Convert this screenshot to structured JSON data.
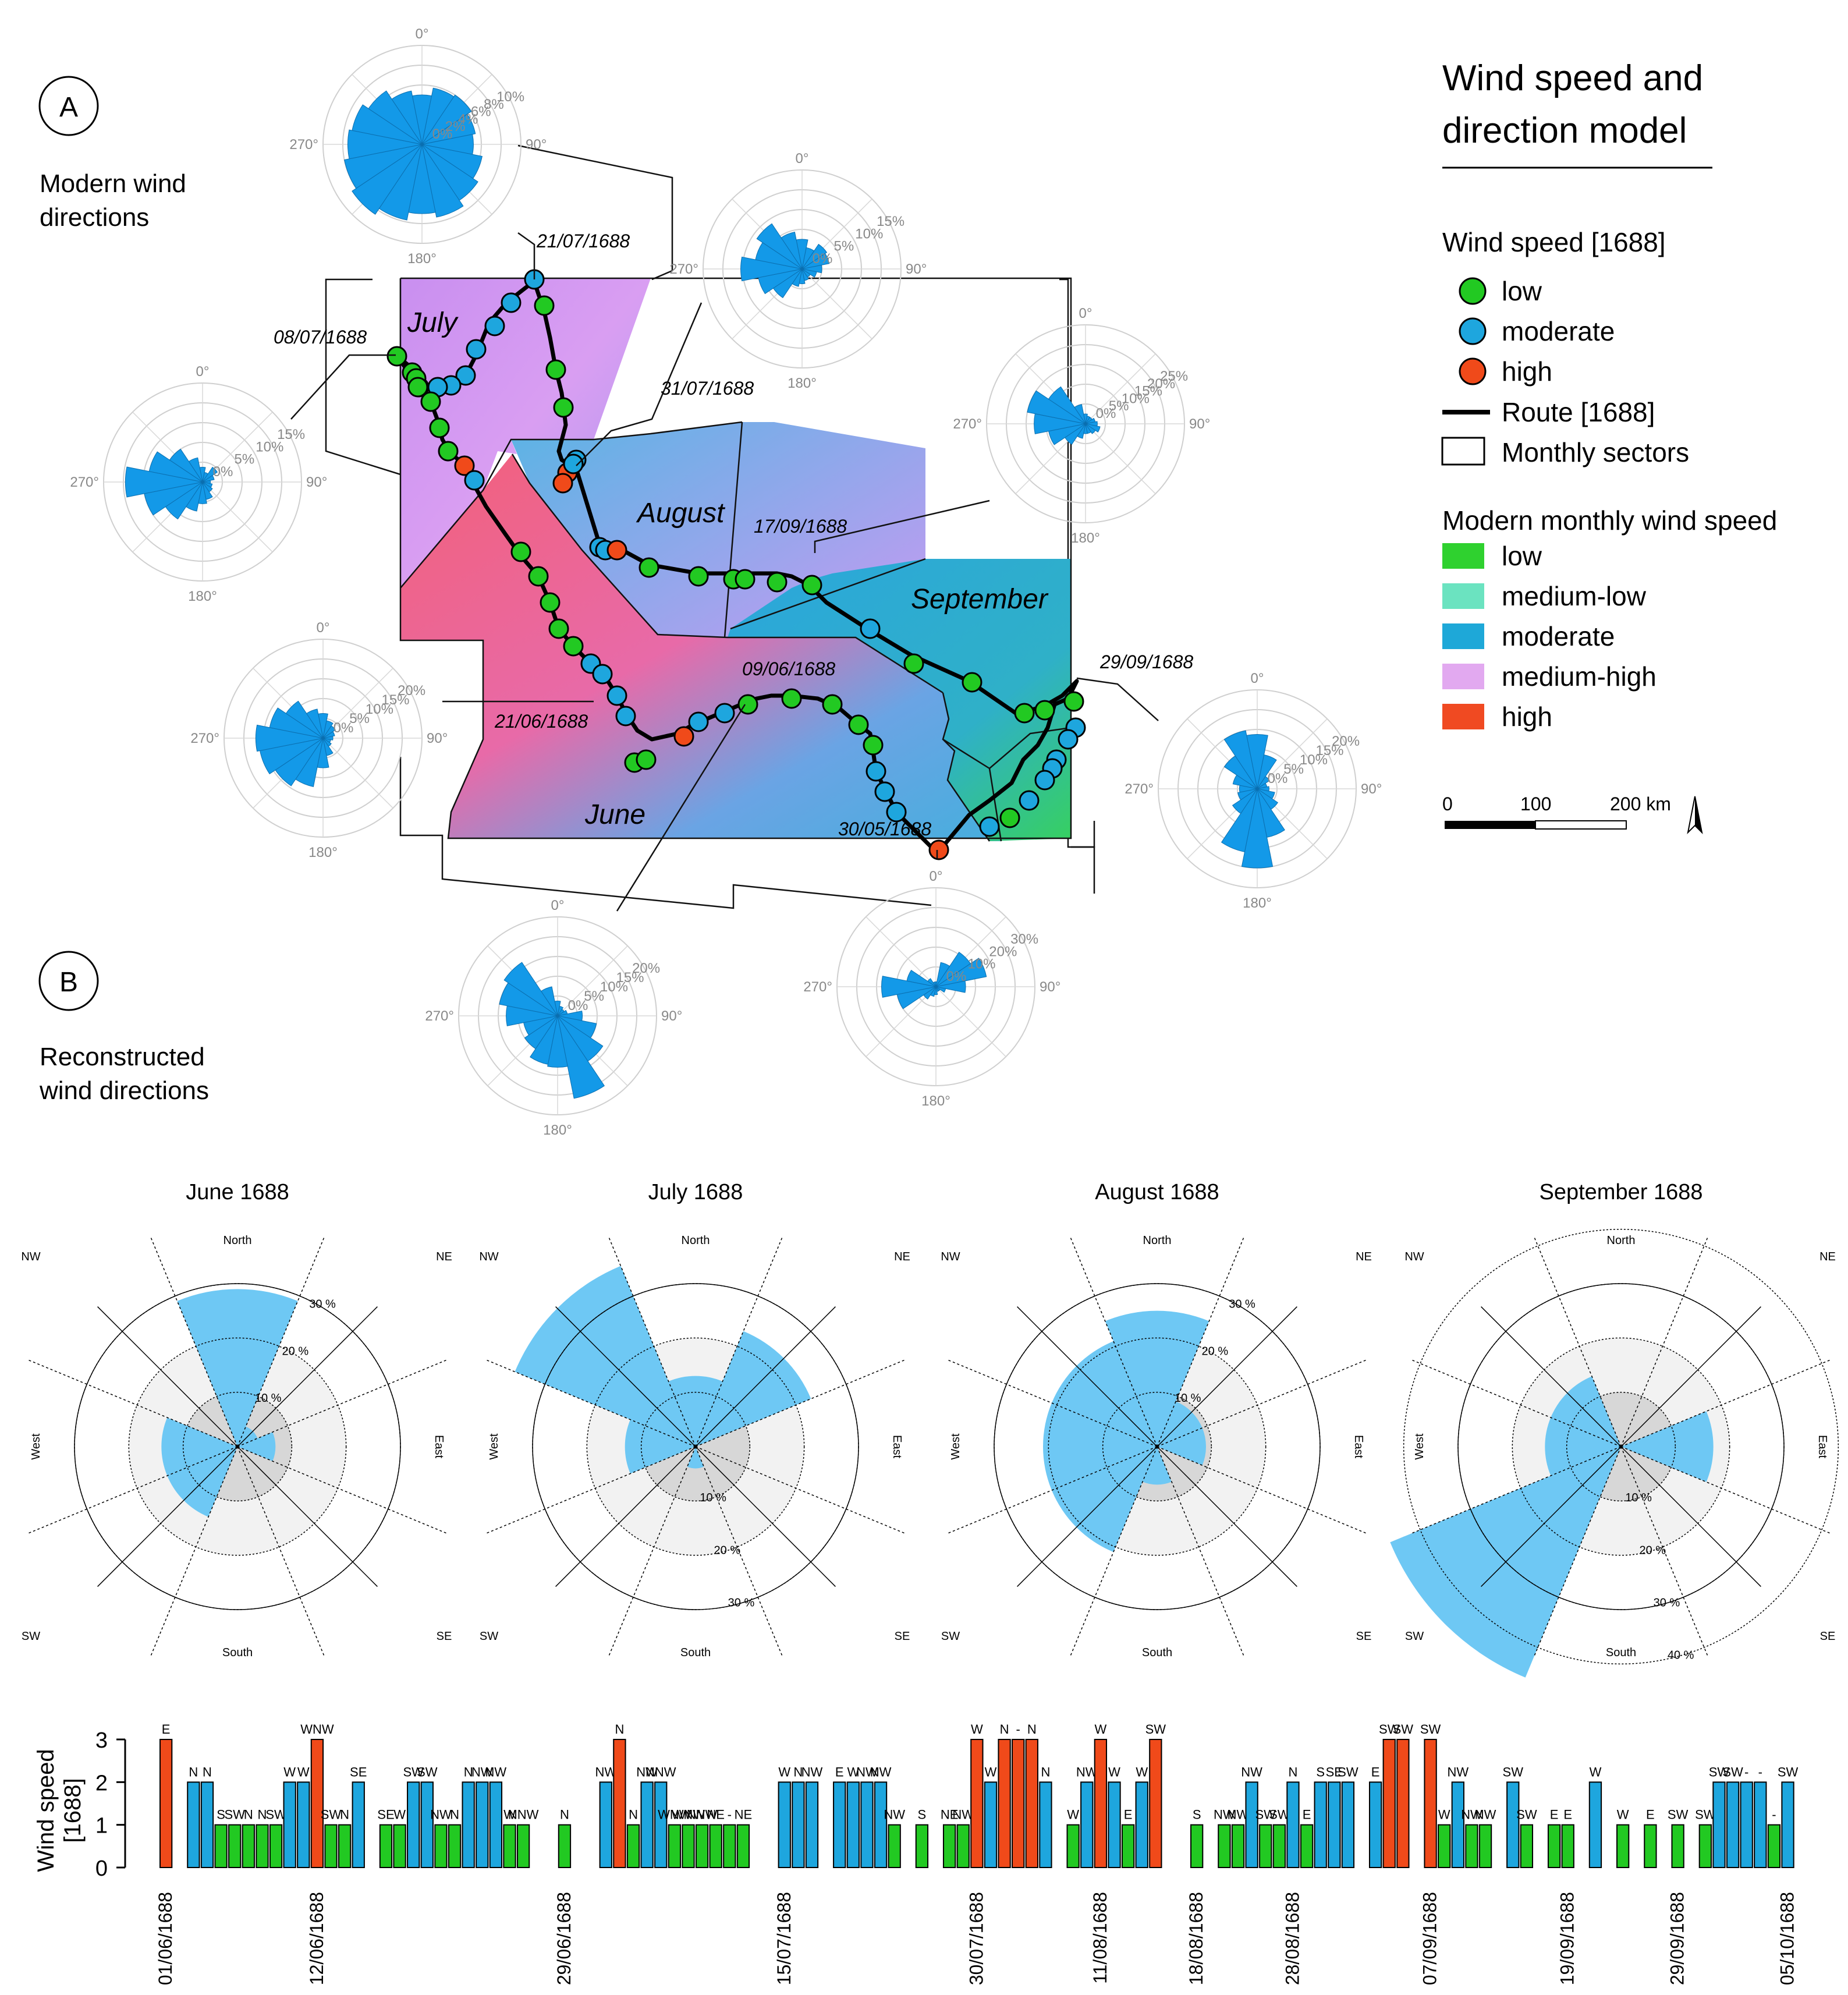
{
  "panels": {
    "a_label": "A",
    "a_caption": [
      "Modern wind",
      "directions"
    ],
    "b_label": "B",
    "b_caption": [
      "Reconstructed",
      "wind directions"
    ]
  },
  "legend": {
    "title": [
      "Wind speed and",
      "direction model"
    ],
    "wind_speed_title": "Wind speed [1688]",
    "wind_speed_items": [
      {
        "label": "low",
        "color": "#22c922"
      },
      {
        "label": "moderate",
        "color": "#1ea6de"
      },
      {
        "label": "high",
        "color": "#f04a1a"
      }
    ],
    "route_label": "Route [1688]",
    "sectors_label": "Monthly sectors",
    "modern_title": "Modern monthly wind speed",
    "modern_items": [
      {
        "label": "low",
        "color": "#2fd12f"
      },
      {
        "label": "medium-low",
        "color": "#6be3c0"
      },
      {
        "label": "moderate",
        "color": "#1ea8d8"
      },
      {
        "label": "medium-high",
        "color": "#e2a9f0"
      },
      {
        "label": "high",
        "color": "#f04a22"
      }
    ],
    "scale": {
      "ticks": [
        "0",
        "100",
        "200 km"
      ]
    }
  },
  "map": {
    "month_labels": [
      "July",
      "August",
      "September",
      "June"
    ],
    "date_labels": [
      "21/07/1688",
      "08/07/1688",
      "31/07/1688",
      "17/09/1688",
      "09/06/1688",
      "21/06/1688",
      "29/09/1688",
      "30/05/1688"
    ],
    "colors": {
      "low": "#22c922",
      "moderate": "#1ea6de",
      "high": "#f04a1a",
      "rose": "#1399e8"
    }
  },
  "modern_roses": [
    {
      "id": "jul-top",
      "ticks": [
        "0%",
        "2%",
        "4%",
        "6%",
        "8%",
        "10%"
      ],
      "cardinals": [
        "0°",
        "90°",
        "180°",
        "270°"
      ]
    },
    {
      "id": "aug-top",
      "ticks": [
        "0%",
        "5%",
        "10%",
        "15%"
      ],
      "cardinals": [
        "0°",
        "90°",
        "180°",
        "270°"
      ]
    },
    {
      "id": "jul-left",
      "ticks": [
        "0%",
        "5%",
        "10%",
        "15%"
      ],
      "cardinals": [
        "0°",
        "90°",
        "180°",
        "270°"
      ]
    },
    {
      "id": "sep-right",
      "ticks": [
        "0%",
        "5%",
        "10%",
        "15%",
        "20%",
        "25%"
      ],
      "cardinals": [
        "0°",
        "90°",
        "180°",
        "270°"
      ]
    },
    {
      "id": "jun-left",
      "ticks": [
        "0%",
        "5%",
        "10%",
        "15%",
        "20%"
      ],
      "cardinals": [
        "0°",
        "90°",
        "180°",
        "270°"
      ]
    },
    {
      "id": "sep-far-right",
      "ticks": [
        "0%",
        "5%",
        "10%",
        "15%",
        "20%"
      ],
      "cardinals": [
        "0°",
        "90°",
        "180°",
        "270°"
      ]
    },
    {
      "id": "jun-bottom",
      "ticks": [
        "0%",
        "5%",
        "10%",
        "15%",
        "20%"
      ],
      "cardinals": [
        "0°",
        "90°",
        "180°",
        "270°"
      ]
    },
    {
      "id": "may-bottom",
      "ticks": [
        "0%",
        "10%",
        "20%",
        "30%"
      ],
      "cardinals": [
        "0°",
        "90°",
        "180°",
        "270°"
      ]
    }
  ],
  "chart_data": [
    {
      "type": "rose",
      "title": "June 1688",
      "directions": [
        "N",
        "NE",
        "E",
        "SE",
        "S",
        "SW",
        "W",
        "NW"
      ],
      "direction_labels": [
        "North",
        "NE",
        "East",
        "SE",
        "South",
        "SW",
        "West",
        "NW"
      ],
      "values": [
        29,
        4,
        7,
        0,
        0,
        14,
        14,
        0
      ],
      "ring_labels": [
        "10 %",
        "20 %",
        "30 %"
      ],
      "rmax": 40
    },
    {
      "type": "rose",
      "title": "July 1688",
      "directions": [
        "N",
        "NE",
        "E",
        "SE",
        "S",
        "SW",
        "W",
        "NW"
      ],
      "direction_labels": [
        "North",
        "NE",
        "East",
        "SE",
        "South",
        "SW",
        "West",
        "NW"
      ],
      "values": [
        13,
        23,
        0,
        0,
        4,
        0,
        13,
        36
      ],
      "ring_labels": [
        "10 %",
        "20 %",
        "30 %"
      ],
      "rmax": 40
    },
    {
      "type": "rose",
      "title": "August 1688",
      "directions": [
        "N",
        "NE",
        "E",
        "SE",
        "S",
        "SW",
        "W",
        "NW"
      ],
      "direction_labels": [
        "North",
        "NE",
        "East",
        "SE",
        "South",
        "SW",
        "West",
        "NW"
      ],
      "values": [
        25,
        9,
        9,
        0,
        7,
        21,
        21,
        21
      ],
      "ring_labels": [
        "10 %",
        "20 %",
        "30 %"
      ],
      "rmax": 40
    },
    {
      "type": "rose",
      "title": "September 1688",
      "directions": [
        "N",
        "NE",
        "E",
        "SE",
        "S",
        "SW",
        "W",
        "NW"
      ],
      "direction_labels": [
        "North",
        "NE",
        "East",
        "SE",
        "South",
        "SW",
        "West",
        "NW"
      ],
      "values": [
        0,
        0,
        17,
        0,
        0,
        46,
        14,
        14
      ],
      "ring_labels": [
        "10 %",
        "20 %",
        "30 %",
        "40 %"
      ],
      "rmax": 50
    },
    {
      "type": "bar",
      "title": "",
      "ylabel": [
        "Wind speed",
        "[1688]"
      ],
      "ylim": [
        0,
        3
      ],
      "yticks": [
        "0",
        "1",
        "2",
        "3"
      ],
      "date_ticks": [
        "01/06/1688",
        "12/06/1688",
        "29/06/1688",
        "15/07/1688",
        "30/07/1688",
        "11/08/1688",
        "18/08/1688",
        "28/08/1688",
        "07/09/1688",
        "19/09/1688",
        "29/09/1688",
        "05/10/1688"
      ],
      "colors": {
        "1": "#22c922",
        "2": "#1ea6de",
        "3": "#f04a1a"
      },
      "bars": [
        {
          "v": 3,
          "l": "E"
        },
        {
          "v": null,
          "l": ""
        },
        {
          "v": 2,
          "l": "N"
        },
        {
          "v": 2,
          "l": "N"
        },
        {
          "v": 1,
          "l": "S"
        },
        {
          "v": 1,
          "l": "SW"
        },
        {
          "v": 1,
          "l": "N"
        },
        {
          "v": 1,
          "l": "N"
        },
        {
          "v": 1,
          "l": "SW"
        },
        {
          "v": 2,
          "l": "W"
        },
        {
          "v": 2,
          "l": "W"
        },
        {
          "v": 3,
          "l": "WNW"
        },
        {
          "v": 1,
          "l": "SW"
        },
        {
          "v": 1,
          "l": "N"
        },
        {
          "v": 2,
          "l": "SE"
        },
        {
          "v": null,
          "l": ""
        },
        {
          "v": 1,
          "l": "SE"
        },
        {
          "v": 1,
          "l": "W"
        },
        {
          "v": 2,
          "l": "SW"
        },
        {
          "v": 2,
          "l": "SW"
        },
        {
          "v": 1,
          "l": "NW"
        },
        {
          "v": 1,
          "l": "N"
        },
        {
          "v": 2,
          "l": "N"
        },
        {
          "v": 2,
          "l": "NW"
        },
        {
          "v": 2,
          "l": "NW"
        },
        {
          "v": 1,
          "l": "W"
        },
        {
          "v": 1,
          "l": "NNW"
        },
        {
          "v": null,
          "l": ""
        },
        {
          "v": null,
          "l": ""
        },
        {
          "v": 1,
          "l": "N"
        },
        {
          "v": null,
          "l": ""
        },
        {
          "v": null,
          "l": ""
        },
        {
          "v": 2,
          "l": "NW"
        },
        {
          "v": 3,
          "l": "N"
        },
        {
          "v": 1,
          "l": "N"
        },
        {
          "v": 2,
          "l": "NW"
        },
        {
          "v": 2,
          "l": "NNW"
        },
        {
          "v": 1,
          "l": "WNW"
        },
        {
          "v": 1,
          "l": "WNW"
        },
        {
          "v": 1,
          "l": "NNW"
        },
        {
          "v": 1,
          "l": "NE"
        },
        {
          "v": 1,
          "l": "-"
        },
        {
          "v": 1,
          "l": "NE"
        },
        {
          "v": null,
          "l": ""
        },
        {
          "v": null,
          "l": ""
        },
        {
          "v": 2,
          "l": "W"
        },
        {
          "v": 2,
          "l": "N"
        },
        {
          "v": 2,
          "l": "NW"
        },
        {
          "v": null,
          "l": ""
        },
        {
          "v": 2,
          "l": "E"
        },
        {
          "v": 2,
          "l": "W"
        },
        {
          "v": 2,
          "l": "NW"
        },
        {
          "v": 2,
          "l": "NW"
        },
        {
          "v": 1,
          "l": "NW"
        },
        {
          "v": null,
          "l": ""
        },
        {
          "v": 1,
          "l": "S"
        },
        {
          "v": null,
          "l": ""
        },
        {
          "v": 1,
          "l": "NE"
        },
        {
          "v": 1,
          "l": "NW"
        },
        {
          "v": 3,
          "l": "W"
        },
        {
          "v": 2,
          "l": "W"
        },
        {
          "v": 3,
          "l": "N"
        },
        {
          "v": 3,
          "l": "-"
        },
        {
          "v": 3,
          "l": "N"
        },
        {
          "v": 2,
          "l": "N"
        },
        {
          "v": null,
          "l": ""
        },
        {
          "v": 1,
          "l": "W"
        },
        {
          "v": 2,
          "l": "NW"
        },
        {
          "v": 3,
          "l": "W"
        },
        {
          "v": 2,
          "l": "W"
        },
        {
          "v": 1,
          "l": "E"
        },
        {
          "v": 2,
          "l": "W"
        },
        {
          "v": 3,
          "l": "SW"
        },
        {
          "v": null,
          "l": ""
        },
        {
          "v": null,
          "l": ""
        },
        {
          "v": 1,
          "l": "S"
        },
        {
          "v": null,
          "l": ""
        },
        {
          "v": 1,
          "l": "NW"
        },
        {
          "v": 1,
          "l": "NW"
        },
        {
          "v": 2,
          "l": "NW"
        },
        {
          "v": 1,
          "l": "SW"
        },
        {
          "v": 1,
          "l": "SW"
        },
        {
          "v": 2,
          "l": "N"
        },
        {
          "v": 1,
          "l": "E"
        },
        {
          "v": 2,
          "l": "S"
        },
        {
          "v": 2,
          "l": "SE"
        },
        {
          "v": 2,
          "l": "SW"
        },
        {
          "v": null,
          "l": ""
        },
        {
          "v": 2,
          "l": "E"
        },
        {
          "v": 3,
          "l": "SW"
        },
        {
          "v": 3,
          "l": "SW"
        },
        {
          "v": null,
          "l": ""
        },
        {
          "v": 3,
          "l": "SW"
        },
        {
          "v": 1,
          "l": "W"
        },
        {
          "v": 2,
          "l": "NW"
        },
        {
          "v": 1,
          "l": "NW"
        },
        {
          "v": 1,
          "l": "NW"
        },
        {
          "v": null,
          "l": ""
        },
        {
          "v": 2,
          "l": "SW"
        },
        {
          "v": 1,
          "l": "SW"
        },
        {
          "v": null,
          "l": ""
        },
        {
          "v": 1,
          "l": "E"
        },
        {
          "v": 1,
          "l": "E"
        },
        {
          "v": null,
          "l": ""
        },
        {
          "v": 2,
          "l": "W"
        },
        {
          "v": null,
          "l": ""
        },
        {
          "v": 1,
          "l": "W"
        },
        {
          "v": null,
          "l": ""
        },
        {
          "v": 1,
          "l": "E"
        },
        {
          "v": null,
          "l": ""
        },
        {
          "v": 1,
          "l": "SW"
        },
        {
          "v": null,
          "l": ""
        },
        {
          "v": 1,
          "l": "SW"
        },
        {
          "v": 2,
          "l": "SW"
        },
        {
          "v": 2,
          "l": "SW"
        },
        {
          "v": 2,
          "l": "-"
        },
        {
          "v": 2,
          "l": "-"
        },
        {
          "v": 1,
          "l": "-"
        },
        {
          "v": 2,
          "l": "SW"
        }
      ]
    }
  ]
}
